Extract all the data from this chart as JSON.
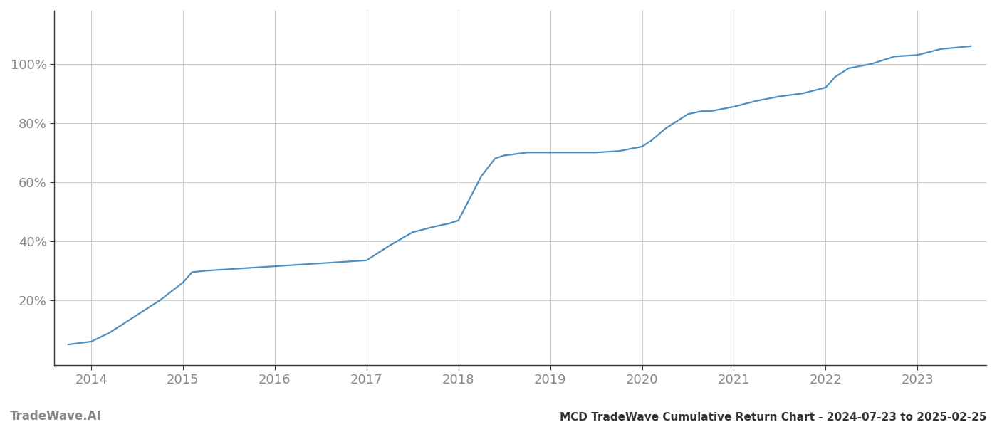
{
  "title": "MCD TradeWave Cumulative Return Chart - 2024-07-23 to 2025-02-25",
  "watermark": "TradeWave.AI",
  "line_color": "#4a90c4",
  "background_color": "#ffffff",
  "grid_color": "#cccccc",
  "x_years": [
    2013.75,
    2014.0,
    2014.2,
    2014.5,
    2014.75,
    2015.0,
    2015.1,
    2015.25,
    2015.5,
    2015.75,
    2016.0,
    2016.25,
    2016.5,
    2016.75,
    2017.0,
    2017.25,
    2017.5,
    2017.75,
    2017.9,
    2018.0,
    2018.25,
    2018.4,
    2018.5,
    2018.75,
    2019.0,
    2019.25,
    2019.5,
    2019.75,
    2020.0,
    2020.1,
    2020.25,
    2020.5,
    2020.65,
    2020.75,
    2021.0,
    2021.25,
    2021.5,
    2021.75,
    2022.0,
    2022.1,
    2022.25,
    2022.5,
    2022.75,
    2023.0,
    2023.25,
    2023.58
  ],
  "y_values": [
    0.05,
    0.06,
    0.09,
    0.15,
    0.2,
    0.26,
    0.295,
    0.3,
    0.305,
    0.31,
    0.315,
    0.32,
    0.325,
    0.33,
    0.335,
    0.385,
    0.43,
    0.45,
    0.46,
    0.47,
    0.62,
    0.68,
    0.69,
    0.7,
    0.7,
    0.7,
    0.7,
    0.705,
    0.72,
    0.74,
    0.78,
    0.83,
    0.84,
    0.84,
    0.855,
    0.875,
    0.89,
    0.9,
    0.92,
    0.955,
    0.985,
    1.0,
    1.025,
    1.03,
    1.05,
    1.06
  ],
  "xlim": [
    2013.6,
    2023.75
  ],
  "ylim": [
    -0.02,
    1.18
  ],
  "xtick_years": [
    2014,
    2015,
    2016,
    2017,
    2018,
    2019,
    2020,
    2021,
    2022,
    2023
  ],
  "ytick_values": [
    0.2,
    0.4,
    0.6,
    0.8,
    1.0
  ],
  "ytick_labels": [
    "20%",
    "40%",
    "60%",
    "80%",
    "100%"
  ],
  "line_width": 1.6,
  "tick_color": "#888888",
  "spine_color": "#333333",
  "title_fontsize": 11,
  "tick_fontsize": 13,
  "watermark_fontsize": 12
}
